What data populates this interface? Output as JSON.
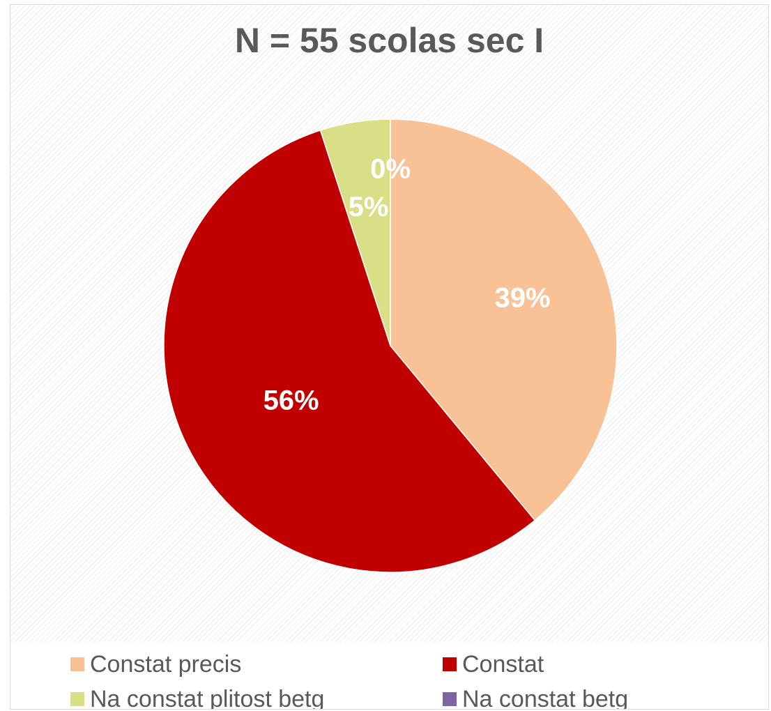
{
  "chart_data": {
    "type": "pie",
    "title": "N = 55 scolas sec I",
    "legend_position": "bottom",
    "slices": [
      {
        "name": "Constat precis",
        "value": 39,
        "label": "39%",
        "color": "#f9c196"
      },
      {
        "name": "Constat",
        "value": 56,
        "label": "56%",
        "color": "#c00000"
      },
      {
        "name": "Na constat plitost betg",
        "value": 5,
        "label": "5%",
        "color": "#d9df87"
      },
      {
        "name": "Na constat betg",
        "value": 0,
        "label": "0%",
        "color": "#8064a2"
      }
    ]
  }
}
